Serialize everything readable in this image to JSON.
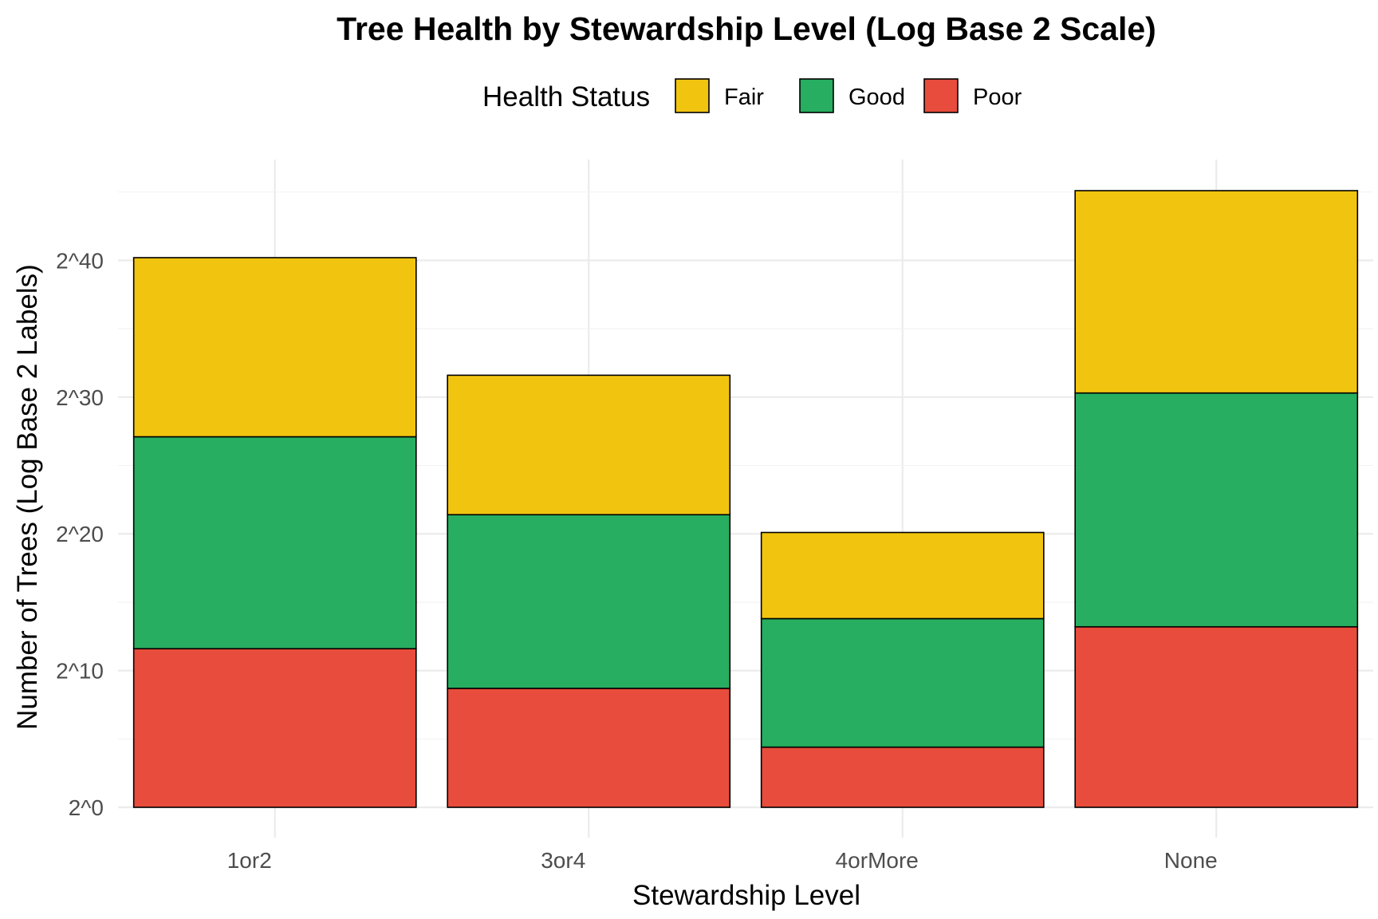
{
  "chart_data": {
    "type": "bar",
    "stacked": true,
    "title": "Tree Health by Stewardship Level (Log Base 2 Scale)",
    "xlabel": "Stewardship Level",
    "ylabel": "Number of Trees (Log Base 2 Labels)",
    "categories": [
      "1or2",
      "3or4",
      "4orMore",
      "None"
    ],
    "series": [
      {
        "name": "Poor",
        "color": "#E74C3C",
        "values": [
          11.6,
          8.7,
          4.4,
          13.2
        ]
      },
      {
        "name": "Good",
        "color": "#27AE60",
        "values": [
          15.5,
          12.7,
          9.4,
          17.1
        ]
      },
      {
        "name": "Fair",
        "color": "#F1C40F",
        "values": [
          13.1,
          10.2,
          6.3,
          14.8
        ]
      }
    ],
    "stack_order_bottom_to_top": [
      "Poor",
      "Good",
      "Fair"
    ],
    "ylim": [
      0,
      45.6
    ],
    "yticks": [
      0,
      10,
      20,
      30,
      40
    ],
    "ytick_labels": [
      "2^0",
      "2^10",
      "2^20",
      "2^30",
      "2^40"
    ],
    "grid": true,
    "legend": {
      "title": "Health Status",
      "position": "top",
      "entries": [
        {
          "name": "Fair",
          "color": "#F1C40F"
        },
        {
          "name": "Good",
          "color": "#27AE60"
        },
        {
          "name": "Poor",
          "color": "#E74C3C"
        }
      ]
    }
  }
}
